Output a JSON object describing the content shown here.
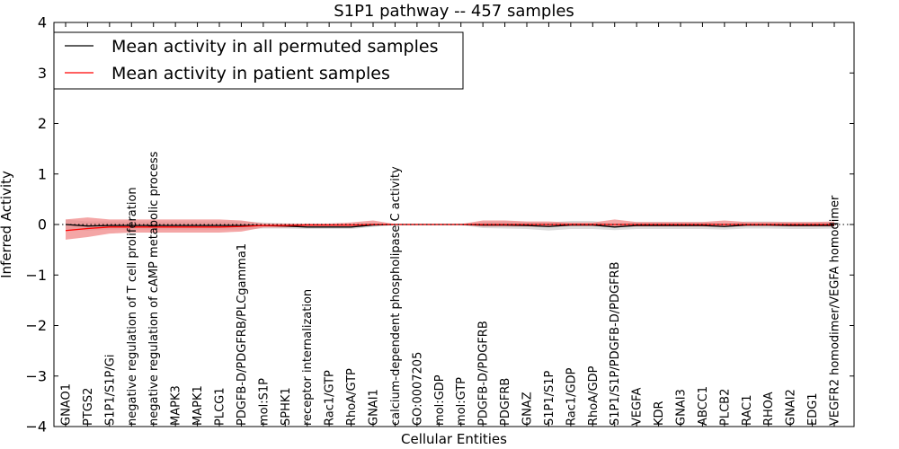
{
  "chart_data": {
    "type": "line",
    "title": "S1P1 pathway -- 457 samples",
    "xlabel": "Cellular Entities",
    "ylabel": "Inferred Activity",
    "ylim": [
      -4,
      4
    ],
    "yticks": [
      -4,
      -3,
      -2,
      -1,
      0,
      1,
      2,
      3,
      4
    ],
    "ytick_labels": [
      "−4",
      "−3",
      "−2",
      "−1",
      "0",
      "1",
      "2",
      "3",
      "4"
    ],
    "legend_position": "upper-left",
    "categories": [
      "GNAO1",
      "PTGS2",
      "S1P1/S1P/Gi",
      "negative regulation of T cell proliferation",
      "negative regulation of cAMP metabolic process",
      "MAPK3",
      "MAPK1",
      "PLCG1",
      "PDGFB-D/PDGFRB/PLCgamma1",
      "mol:S1P",
      "SPHK1",
      "receptor internalization",
      "Rac1/GTP",
      "RhoA/GTP",
      "GNAI1",
      "calcium-dependent phospholipase C activity",
      "GO:0007205",
      "mol:GDP",
      "mol:GTP",
      "PDGFB-D/PDGFRB",
      "PDGFRB",
      "GNAZ",
      "S1P1/S1P",
      "Rac1/GDP",
      "RhoA/GDP",
      "S1P1/S1P/PDGFB-D/PDGFRB",
      "VEGFA",
      "KDR",
      "GNAI3",
      "ABCC1",
      "PLCB2",
      "RAC1",
      "RHOA",
      "GNAI2",
      "EDG1",
      "VEGFR2 homodimer/VEGFA homodimer"
    ],
    "series": [
      {
        "name": "Mean activity in all permuted samples",
        "color": "#000000",
        "band_color": "#d3d3d3",
        "values": [
          0.0,
          -0.03,
          -0.02,
          -0.02,
          -0.02,
          -0.02,
          -0.02,
          -0.02,
          -0.02,
          -0.02,
          -0.03,
          -0.05,
          -0.05,
          -0.05,
          -0.01,
          0.0,
          0.0,
          0.0,
          0.0,
          -0.01,
          -0.01,
          -0.02,
          -0.04,
          -0.01,
          -0.01,
          -0.05,
          -0.02,
          -0.02,
          -0.02,
          -0.02,
          -0.04,
          -0.01,
          -0.01,
          -0.02,
          -0.02,
          -0.02
        ],
        "lower": [
          -0.1,
          -0.12,
          -0.1,
          -0.1,
          -0.1,
          -0.1,
          -0.1,
          -0.1,
          -0.1,
          -0.08,
          -0.08,
          -0.09,
          -0.09,
          -0.09,
          -0.05,
          -0.01,
          -0.01,
          -0.01,
          -0.01,
          -0.07,
          -0.08,
          -0.09,
          -0.12,
          -0.09,
          -0.09,
          -0.11,
          -0.09,
          -0.09,
          -0.09,
          -0.09,
          -0.1,
          -0.08,
          -0.08,
          -0.09,
          -0.09,
          -0.08
        ],
        "upper": [
          0.1,
          0.06,
          0.06,
          0.06,
          0.06,
          0.06,
          0.06,
          0.06,
          0.06,
          0.04,
          0.02,
          0.0,
          0.0,
          0.0,
          0.03,
          0.01,
          0.01,
          0.01,
          0.01,
          0.05,
          0.06,
          0.05,
          0.04,
          0.07,
          0.07,
          0.01,
          0.05,
          0.05,
          0.05,
          0.05,
          0.02,
          0.06,
          0.06,
          0.05,
          0.05,
          0.04
        ]
      },
      {
        "name": "Mean activity in patient samples",
        "color": "#ff0000",
        "band_color": "#f08080",
        "values": [
          -0.12,
          -0.08,
          -0.05,
          -0.05,
          -0.05,
          -0.05,
          -0.05,
          -0.05,
          -0.04,
          -0.02,
          -0.02,
          -0.01,
          -0.01,
          -0.01,
          0.0,
          0.0,
          0.0,
          0.0,
          0.0,
          0.0,
          0.0,
          0.0,
          0.0,
          0.0,
          0.0,
          0.0,
          0.0,
          0.0,
          0.0,
          0.0,
          0.0,
          0.0,
          0.0,
          0.0,
          0.0,
          0.0
        ],
        "lower": [
          -0.3,
          -0.25,
          -0.18,
          -0.16,
          -0.16,
          -0.16,
          -0.16,
          -0.16,
          -0.14,
          -0.06,
          -0.06,
          -0.04,
          -0.04,
          -0.04,
          -0.02,
          -0.01,
          -0.01,
          -0.01,
          -0.01,
          -0.04,
          -0.04,
          -0.04,
          -0.05,
          -0.03,
          -0.03,
          -0.05,
          -0.04,
          -0.04,
          -0.04,
          -0.04,
          -0.05,
          -0.03,
          -0.03,
          -0.04,
          -0.04,
          -0.04
        ],
        "upper": [
          0.1,
          0.14,
          0.1,
          0.1,
          0.1,
          0.1,
          0.1,
          0.1,
          0.08,
          0.02,
          0.02,
          0.02,
          0.02,
          0.04,
          0.08,
          0.01,
          0.01,
          0.01,
          0.01,
          0.08,
          0.08,
          0.06,
          0.06,
          0.04,
          0.04,
          0.1,
          0.05,
          0.05,
          0.05,
          0.05,
          0.08,
          0.05,
          0.05,
          0.05,
          0.05,
          0.06
        ]
      }
    ],
    "baseline": 0
  }
}
